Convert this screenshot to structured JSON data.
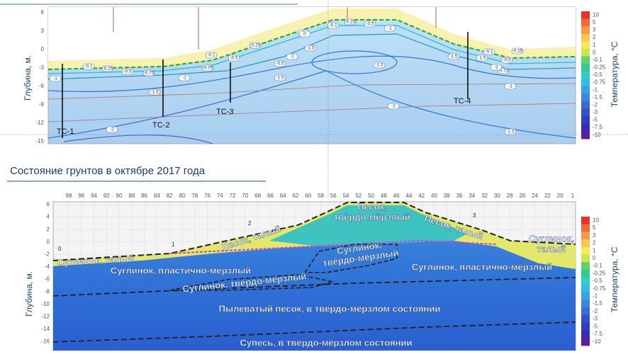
{
  "top_panel": {
    "y_label": "Глубина, м.",
    "y_ticks": [
      "6",
      "3",
      "0",
      "-3",
      "-6",
      "-9",
      "-12",
      "-15"
    ],
    "boreholes": [
      "ТС-1",
      "ТС-2",
      "ТС-3",
      "ТС-4"
    ],
    "contour_labels": [
      "-0.1",
      "-0.25",
      "-0.5",
      "-0.75",
      "-1",
      "-1.5",
      "-2",
      "0",
      "-0.1",
      "-0.25",
      "-0.5",
      "-1",
      "-1.5",
      "-1",
      "-0.5",
      "-1.5",
      "-2",
      "-1.5",
      "-1",
      "-0.75",
      "-0.5",
      "-0.25",
      "-0.1",
      "0",
      "-0.1",
      "-0.25",
      "-0.5",
      "-0.75",
      "-1",
      "-1.5",
      "-1.5",
      "-2",
      "-1.5"
    ]
  },
  "colorbar": {
    "label": "Температура, °C",
    "ticks": [
      "10",
      "5",
      "3",
      "2",
      "1",
      "0",
      "-0.1",
      "-0.25",
      "-0.5",
      "-0.75",
      "-1",
      "-1.5",
      "-2",
      "-3",
      "-5",
      "-7.5",
      "-10"
    ],
    "colors": [
      "#e8302c",
      "#ef6a3a",
      "#f39a4a",
      "#f6c653",
      "#f6e85a",
      "#c8e650",
      "#5fd36a",
      "#36c98d",
      "#2fd0c8",
      "#36b9e6",
      "#3aa0e4",
      "#3a86de",
      "#3a6ad6",
      "#3552cc",
      "#2f3fbf",
      "#3a2cb0",
      "#5b1fa0"
    ]
  },
  "heading": "Состояние грунтов в октябре 2017 года",
  "bottom_panel": {
    "y_label": "Глубина, м.",
    "x_ticks": [
      "98",
      "96",
      "94",
      "92",
      "90",
      "88",
      "86",
      "84",
      "82",
      "80",
      "78",
      "76",
      "74",
      "72",
      "70",
      "68",
      "66",
      "64",
      "62",
      "60",
      "58",
      "56",
      "54",
      "52",
      "50",
      "48",
      "46",
      "44",
      "42",
      "40",
      "38",
      "36",
      "34",
      "32",
      "30",
      "28",
      "26",
      "24",
      "22",
      "20",
      "1"
    ],
    "y_ticks": [
      "6",
      "4",
      "2",
      "0",
      "-2",
      "-4",
      "-6",
      "-8",
      "-10",
      "-12",
      "-14",
      "-16"
    ],
    "markers": [
      "0",
      "1",
      "2",
      "3"
    ],
    "soil_labels": [
      "Песок,\nтвёрдо-мёрзлый",
      "Песок, талый",
      "Песок, талый",
      "Суглинок, талый",
      "Суглинок,\nталый",
      "Суглинок,\nтвёрдо-мёрзлый",
      "Суглинок, пластично-мёрзлый",
      "Суглинок, пластично-мёрзлый",
      "Суглинок, твёрдо-мёрзлый",
      "Пылеватый песок, в твёрдо-мёрзлом состоянии",
      "Супесь, в твёрдо-мёрзлом состоянии"
    ]
  }
}
